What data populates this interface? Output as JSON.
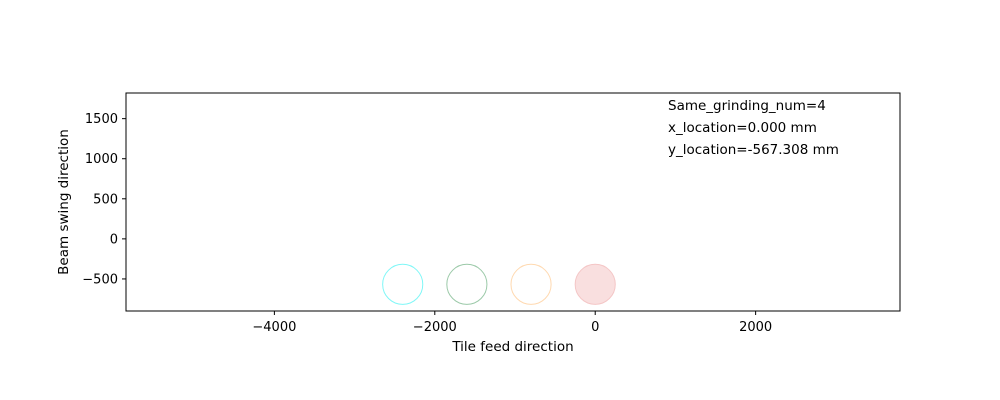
{
  "chart_data": {
    "type": "scatter",
    "title": "",
    "xlabel": "Tile feed direction",
    "ylabel": "Beam swing direction",
    "xlim": [
      -5850,
      3800
    ],
    "ylim": [
      -900,
      1820
    ],
    "xticks": [
      -4000,
      -2000,
      0,
      2000
    ],
    "yticks": [
      -500,
      0,
      500,
      1000,
      1500
    ],
    "grid": false,
    "circles": [
      {
        "x": -2400,
        "y": -567.308,
        "radius": 250,
        "stroke": "#7ff7f7",
        "fill": "none"
      },
      {
        "x": -1600,
        "y": -567.308,
        "radius": 250,
        "stroke": "#9bc9a8",
        "fill": "none"
      },
      {
        "x": -800,
        "y": -567.308,
        "radius": 250,
        "stroke": "#ffd9b0",
        "fill": "none"
      },
      {
        "x": 0,
        "y": -567.308,
        "radius": 250,
        "stroke": "#f4c6c6",
        "fill": "#f9dfdf"
      }
    ],
    "annotations": [
      "Same_grinding_num=4",
      "x_location=0.000 mm",
      "y_location=-567.308 mm"
    ]
  }
}
